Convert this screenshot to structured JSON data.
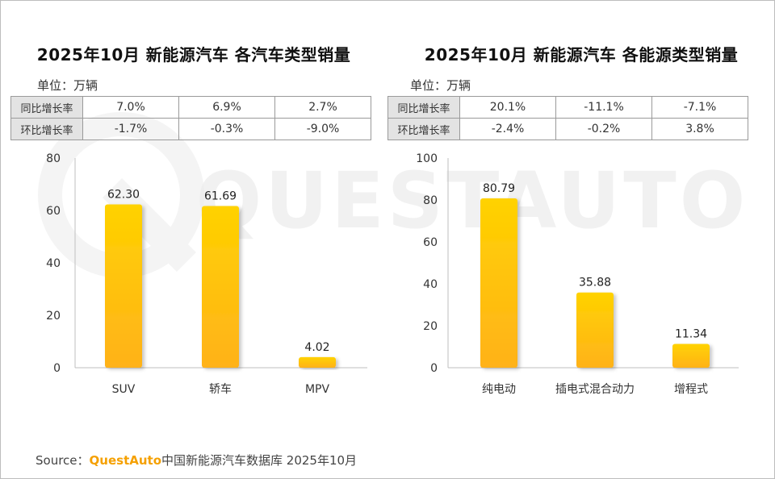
{
  "unit_label": "单位：万辆",
  "rate_labels": {
    "yoy": "同比增长率",
    "mom": "环比增长率"
  },
  "colors": {
    "bar_top": "#ffd200",
    "bar_bottom": "#ffb21a",
    "accent": "#f5a000",
    "watermark": "#ededed"
  },
  "watermark_text": "QUESTAUTO",
  "chart_data": [
    {
      "type": "bar",
      "title": "2025年10月 新能源汽车 各汽车类型销量",
      "categories": [
        "SUV",
        "轿车",
        "MPV"
      ],
      "values": [
        62.3,
        61.69,
        4.02
      ],
      "value_labels": [
        "62.30",
        "61.69",
        "4.02"
      ],
      "ylim": [
        0,
        80
      ],
      "yticks": [
        "0",
        "20",
        "40",
        "60",
        "80"
      ],
      "ylabel": "万辆",
      "yoy": [
        "7.0%",
        "6.9%",
        "2.7%"
      ],
      "mom": [
        "-1.7%",
        "-0.3%",
        "-9.0%"
      ]
    },
    {
      "type": "bar",
      "title": "2025年10月 新能源汽车 各能源类型销量",
      "categories": [
        "纯电动",
        "插电式混合动力",
        "增程式"
      ],
      "values": [
        80.79,
        35.88,
        11.34
      ],
      "value_labels": [
        "80.79",
        "35.88",
        "11.34"
      ],
      "ylim": [
        0,
        100
      ],
      "yticks": [
        "0",
        "20",
        "40",
        "60",
        "80",
        "100"
      ],
      "ylabel": "万辆",
      "yoy": [
        "20.1%",
        "-11.1%",
        "-7.1%"
      ],
      "mom": [
        "-2.4%",
        "-0.2%",
        "3.8%"
      ]
    }
  ],
  "source": {
    "prefix": "Source：",
    "brand": "QuestAuto",
    "text": "中国新能源汽车数据库 2025年10月"
  }
}
